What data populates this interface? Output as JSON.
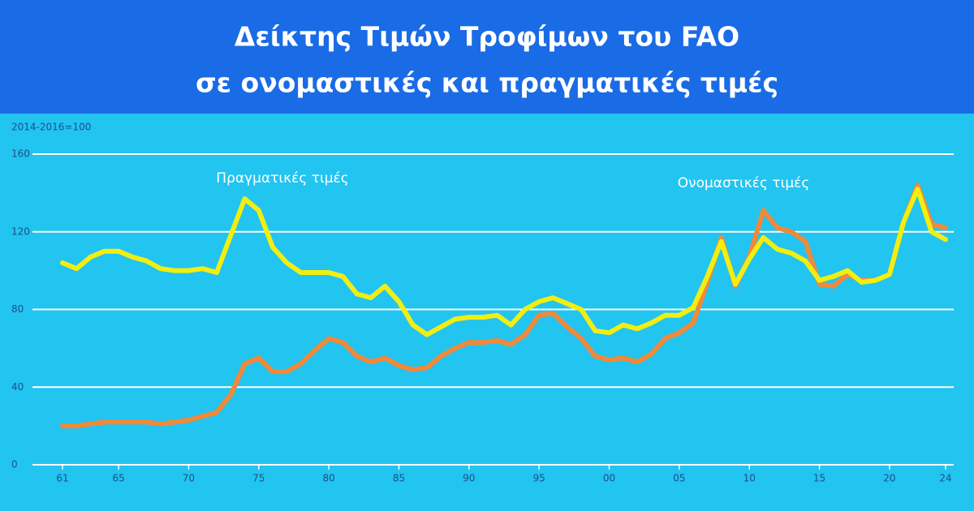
{
  "chart_data": {
    "type": "line",
    "title": "Δείκτης Τιμών Τροφίμων του FAO",
    "subtitle": "σε ονομαστικές και πραγματικές τιμές",
    "y_label": "2014-2016=100",
    "x": [
      1961,
      1962,
      1963,
      1964,
      1965,
      1966,
      1967,
      1968,
      1969,
      1970,
      1971,
      1972,
      1973,
      1974,
      1975,
      1976,
      1977,
      1978,
      1979,
      1980,
      1981,
      1982,
      1983,
      1984,
      1985,
      1986,
      1987,
      1988,
      1989,
      1990,
      1991,
      1992,
      1993,
      1994,
      1995,
      1996,
      1997,
      1998,
      1999,
      2000,
      2001,
      2002,
      2003,
      2004,
      2005,
      2006,
      2007,
      2008,
      2009,
      2010,
      2011,
      2012,
      2013,
      2014,
      2015,
      2016,
      2017,
      2018,
      2019,
      2020,
      2021,
      2022,
      2023,
      2024
    ],
    "series": [
      {
        "name": "Ονομαστικές τιμές",
        "color": "#f0893a",
        "values": [
          20,
          20,
          21,
          22,
          22,
          22,
          22,
          21,
          22,
          23,
          25,
          27,
          36,
          52,
          55,
          48,
          48,
          52,
          59,
          65,
          63,
          56,
          53,
          55,
          51,
          49,
          50,
          56,
          60,
          63,
          63,
          64,
          62,
          67,
          77,
          78,
          71,
          65,
          56,
          54,
          55,
          53,
          57,
          65,
          68,
          73,
          94,
          117,
          92,
          107,
          131,
          122,
          120,
          115,
          93,
          92,
          98,
          95,
          95,
          98,
          125,
          144,
          124,
          122
        ]
      },
      {
        "name": "Πραγματικές τιμές",
        "color": "#f2ee10",
        "values": [
          104,
          101,
          107,
          110,
          110,
          107,
          105,
          101,
          100,
          100,
          101,
          99,
          118,
          137,
          131,
          112,
          104,
          99,
          99,
          99,
          97,
          88,
          86,
          92,
          84,
          72,
          67,
          71,
          75,
          76,
          76,
          77,
          72,
          80,
          84,
          86,
          83,
          80,
          69,
          68,
          72,
          70,
          73,
          77,
          77,
          81,
          97,
          115,
          93,
          106,
          117,
          111,
          109,
          105,
          95,
          97,
          100,
          94,
          95,
          98,
          125,
          142,
          120,
          116
        ]
      }
    ],
    "xlim": [
      1961,
      2024
    ],
    "xticks": [
      {
        "value": 1961,
        "label": "61"
      },
      {
        "value": 1965,
        "label": "65"
      },
      {
        "value": 1970,
        "label": "70"
      },
      {
        "value": 1975,
        "label": "75"
      },
      {
        "value": 1980,
        "label": "80"
      },
      {
        "value": 1985,
        "label": "85"
      },
      {
        "value": 1990,
        "label": "90"
      },
      {
        "value": 1995,
        "label": "95"
      },
      {
        "value": 2000,
        "label": "00"
      },
      {
        "value": 2005,
        "label": "05"
      },
      {
        "value": 2010,
        "label": "10"
      },
      {
        "value": 2015,
        "label": "15"
      },
      {
        "value": 2020,
        "label": "20"
      },
      {
        "value": 2024,
        "label": "24"
      }
    ],
    "ylim": [
      0,
      160
    ],
    "yticks": [
      0,
      40,
      80,
      120,
      160
    ],
    "grid": true
  }
}
